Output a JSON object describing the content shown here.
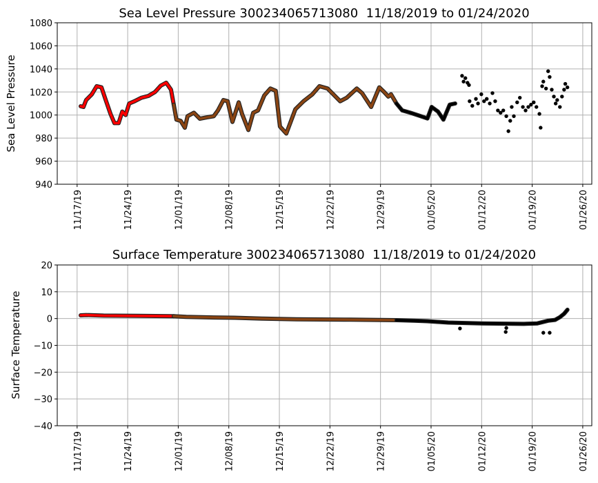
{
  "chart_data": [
    {
      "type": "scatter",
      "title": "Sea Level Pressure 300234065713080  11/18/2019 to 01/24/2020",
      "xlabel": "",
      "ylabel": "Sea Level Pressure",
      "ylim": [
        940,
        1080
      ],
      "yticks": [
        940,
        960,
        980,
        1000,
        1020,
        1040,
        1060,
        1080
      ],
      "xlim": [
        "2019-11-14T06:00",
        "2020-01-27T06:00"
      ],
      "xticks": [
        {
          "date": "2019-11-17T00:00",
          "label": "11/17/19"
        },
        {
          "date": "2019-11-24T00:00",
          "label": "11/24/19"
        },
        {
          "date": "2019-12-01T00:00",
          "label": "12/01/19"
        },
        {
          "date": "2019-12-08T00:00",
          "label": "12/08/19"
        },
        {
          "date": "2019-12-15T00:00",
          "label": "12/15/19"
        },
        {
          "date": "2019-12-22T00:00",
          "label": "12/22/19"
        },
        {
          "date": "2019-12-29T00:00",
          "label": "12/29/19"
        },
        {
          "date": "2020-01-05T00:00",
          "label": "01/05/20"
        },
        {
          "date": "2020-01-12T00:00",
          "label": "01/12/20"
        },
        {
          "date": "2020-01-19T00:00",
          "label": "01/19/20"
        },
        {
          "date": "2020-01-26T00:00",
          "label": "01/26/20"
        }
      ],
      "grid": true,
      "series": [
        {
          "color": "#ff0000",
          "dense": true,
          "points": [
            [
              "2019-11-17T12:00",
              1007.6
            ],
            [
              "2019-11-17T21:00",
              1007
            ],
            [
              "2019-11-18T06:00",
              1013
            ],
            [
              "2019-11-19T01:00",
              1018
            ],
            [
              "2019-11-19T17:00",
              1025
            ],
            [
              "2019-11-20T09:00",
              1024
            ],
            [
              "2019-11-20T23:00",
              1013
            ],
            [
              "2019-11-21T15:00",
              1001
            ],
            [
              "2019-11-22T04:00",
              993
            ],
            [
              "2019-11-22T18:00",
              993
            ],
            [
              "2019-11-23T06:00",
              1003
            ],
            [
              "2019-11-23T17:00",
              1000
            ],
            [
              "2019-11-24T05:00",
              1010
            ],
            [
              "2019-11-24T23:00",
              1012
            ],
            [
              "2019-11-25T22:00",
              1015
            ],
            [
              "2019-11-26T21:00",
              1016.6
            ],
            [
              "2019-11-27T19:00",
              1020
            ],
            [
              "2019-11-28T14:00",
              1025.5
            ],
            [
              "2019-11-29T08:00",
              1028
            ],
            [
              "2019-11-30T00:00",
              1022
            ],
            [
              "2019-11-30T09:00",
              1009
            ]
          ]
        },
        {
          "color": "#8b4513",
          "dense": true,
          "points": [
            [
              "2019-11-30T09:00",
              1009
            ],
            [
              "2019-11-30T18:00",
              996
            ],
            [
              "2019-12-01T08:00",
              995
            ],
            [
              "2019-12-01T22:00",
              989
            ],
            [
              "2019-12-02T07:00",
              999
            ],
            [
              "2019-12-03T04:00",
              1002
            ],
            [
              "2019-12-04T00:00",
              996.8
            ],
            [
              "2019-12-04T23:00",
              998
            ],
            [
              "2019-12-05T22:00",
              999
            ],
            [
              "2019-12-06T12:00",
              1004
            ],
            [
              "2019-12-07T06:00",
              1013
            ],
            [
              "2019-12-07T20:00",
              1012
            ],
            [
              "2019-12-08T12:00",
              994
            ],
            [
              "2019-12-09T09:00",
              1011
            ],
            [
              "2019-12-09T20:00",
              1001
            ],
            [
              "2019-12-10T17:00",
              987
            ],
            [
              "2019-12-11T09:00",
              1002
            ],
            [
              "2019-12-12T01:00",
              1004
            ],
            [
              "2019-12-12T22:00",
              1017
            ],
            [
              "2019-12-13T18:00",
              1023
            ],
            [
              "2019-12-14T12:00",
              1021
            ],
            [
              "2019-12-15T02:00",
              990
            ],
            [
              "2019-12-15T23:00",
              984
            ],
            [
              "2019-12-17T05:00",
              1005
            ],
            [
              "2019-12-18T08:00",
              1012
            ],
            [
              "2019-12-19T14:00",
              1018
            ],
            [
              "2019-12-20T13:00",
              1025
            ],
            [
              "2019-12-21T16:00",
              1023
            ],
            [
              "2019-12-23T10:00",
              1012
            ],
            [
              "2019-12-24T08:00",
              1015
            ],
            [
              "2019-12-25T17:00",
              1023
            ],
            [
              "2019-12-26T11:00",
              1019
            ],
            [
              "2019-12-27T17:00",
              1007
            ],
            [
              "2019-12-28T20:00",
              1024
            ],
            [
              "2019-12-29T12:00",
              1020
            ],
            [
              "2019-12-30T02:00",
              1016
            ],
            [
              "2019-12-30T11:00",
              1018
            ],
            [
              "2019-12-31T05:00",
              1010
            ]
          ]
        },
        {
          "color": "#000000",
          "dense": true,
          "points": [
            [
              "2019-12-31T05:00",
              1010
            ],
            [
              "2020-01-01T00:00",
              1004
            ],
            [
              "2020-01-02T03:00",
              1002
            ],
            [
              "2020-01-03T14:00",
              999
            ],
            [
              "2020-01-04T12:00",
              997
            ],
            [
              "2020-01-05T02:00",
              1007
            ],
            [
              "2020-01-05T23:00",
              1003
            ],
            [
              "2020-01-06T17:00",
              996
            ],
            [
              "2020-01-07T14:00",
              1009
            ],
            [
              "2020-01-08T08:00",
              1010
            ]
          ]
        },
        {
          "color": "#000000",
          "dense": false,
          "points": [
            [
              "2020-01-09T07:00",
              1034
            ],
            [
              "2020-01-09T12:00",
              1029
            ],
            [
              "2020-01-09T18:00",
              1032
            ],
            [
              "2020-01-10T01:00",
              1028
            ],
            [
              "2020-01-10T06:00",
              1026
            ],
            [
              "2020-01-10T08:00",
              1012
            ],
            [
              "2020-01-10T17:00",
              1008
            ],
            [
              "2020-01-11T05:00",
              1014
            ],
            [
              "2020-01-11T12:00",
              1010
            ],
            [
              "2020-01-11T23:00",
              1018
            ],
            [
              "2020-01-12T08:00",
              1012
            ],
            [
              "2020-01-12T17:00",
              1014
            ],
            [
              "2020-01-13T03:00",
              1010
            ],
            [
              "2020-01-13T12:00",
              1019
            ],
            [
              "2020-01-13T21:00",
              1012
            ],
            [
              "2020-01-14T06:00",
              1004
            ],
            [
              "2020-01-14T15:00",
              1002
            ],
            [
              "2020-01-15T00:00",
              1004
            ],
            [
              "2020-01-15T10:00",
              999
            ],
            [
              "2020-01-15T17:00",
              986
            ],
            [
              "2020-01-15T23:00",
              995
            ],
            [
              "2020-01-16T04:00",
              1007
            ],
            [
              "2020-01-16T11:00",
              999
            ],
            [
              "2020-01-16T22:00",
              1011
            ],
            [
              "2020-01-17T07:00",
              1015
            ],
            [
              "2020-01-17T17:00",
              1007
            ],
            [
              "2020-01-18T02:00",
              1004
            ],
            [
              "2020-01-18T11:00",
              1007
            ],
            [
              "2020-01-18T20:00",
              1009
            ],
            [
              "2020-01-19T05:00",
              1011
            ],
            [
              "2020-01-19T14:00",
              1007
            ],
            [
              "2020-01-20T00:00",
              1001
            ],
            [
              "2020-01-20T04:00",
              989
            ],
            [
              "2020-01-20T09:00",
              1025
            ],
            [
              "2020-01-20T13:00",
              1029
            ],
            [
              "2020-01-20T22:00",
              1023
            ],
            [
              "2020-01-21T05:00",
              1038
            ],
            [
              "2020-01-21T10:00",
              1033
            ],
            [
              "2020-01-21T17:00",
              1022
            ],
            [
              "2020-01-22T00:00",
              1016
            ],
            [
              "2020-01-22T06:00",
              1010
            ],
            [
              "2020-01-22T11:00",
              1013
            ],
            [
              "2020-01-22T20:00",
              1007
            ],
            [
              "2020-01-23T03:00",
              1016
            ],
            [
              "2020-01-23T10:00",
              1022
            ],
            [
              "2020-01-23T14:00",
              1027
            ],
            [
              "2020-01-23T21:00",
              1024
            ]
          ]
        }
      ]
    },
    {
      "type": "scatter",
      "title": "Surface Temperature 300234065713080  11/18/2019 to 01/24/2020",
      "xlabel": "",
      "ylabel": "Surface Temperature",
      "ylim": [
        -40,
        20
      ],
      "yticks": [
        -40,
        -30,
        -20,
        -10,
        0,
        10,
        20
      ],
      "xlim": [
        "2019-11-14T06:00",
        "2020-01-27T06:00"
      ],
      "grid": true,
      "series": [
        {
          "color": "#ff0000",
          "dense": true,
          "points": [
            [
              "2019-11-17T12:00",
              1.2
            ],
            [
              "2019-11-18T06:00",
              1.3
            ],
            [
              "2019-11-20T16:00",
              1.1
            ],
            [
              "2019-11-25T10:00",
              1.0
            ],
            [
              "2019-11-30T09:00",
              0.9
            ]
          ]
        },
        {
          "color": "#8b4513",
          "dense": true,
          "points": [
            [
              "2019-11-30T09:00",
              0.9
            ],
            [
              "2019-12-02T03:00",
              0.6
            ],
            [
              "2019-12-05T22:00",
              0.4
            ],
            [
              "2019-12-08T19:00",
              0.3
            ],
            [
              "2019-12-12T15:00",
              0.0
            ],
            [
              "2019-12-17T09:00",
              -0.3
            ],
            [
              "2019-12-24T01:00",
              -0.4
            ],
            [
              "2019-12-31T05:00",
              -0.6
            ]
          ]
        },
        {
          "color": "#000000",
          "dense": true,
          "points": [
            [
              "2019-12-31T05:00",
              -0.6
            ],
            [
              "2020-01-02T15:00",
              -0.8
            ],
            [
              "2020-01-04T12:00",
              -1.0
            ],
            [
              "2020-01-07T09:00",
              -1.5
            ],
            [
              "2020-01-12T03:00",
              -1.8
            ],
            [
              "2020-01-17T20:00",
              -2.0
            ],
            [
              "2020-01-19T17:00",
              -1.8
            ],
            [
              "2020-01-21T05:00",
              -0.8
            ],
            [
              "2020-01-22T04:00",
              -0.5
            ],
            [
              "2020-01-22T20:00",
              0.5
            ],
            [
              "2020-01-23T10:00",
              1.8
            ],
            [
              "2020-01-23T21:00",
              3.3
            ]
          ]
        },
        {
          "color": "#000000",
          "dense": false,
          "points": [
            [
              "2020-01-09T00:00",
              -3.7
            ],
            [
              "2020-01-15T08:00",
              -5.0
            ],
            [
              "2020-01-15T10:00",
              -3.5
            ],
            [
              "2020-01-20T13:00",
              -5.3
            ],
            [
              "2020-01-21T10:00",
              -5.3
            ]
          ]
        }
      ]
    }
  ]
}
